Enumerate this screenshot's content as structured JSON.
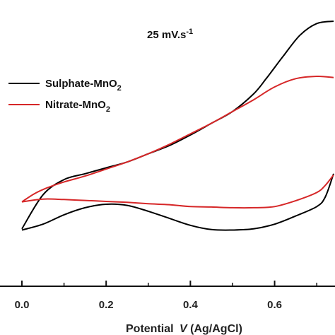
{
  "chart_data": {
    "type": "line",
    "annotation": {
      "main": "25 mV.s",
      "sup": "-1"
    },
    "xlabel": {
      "prefix": "Potential ",
      "var": "V",
      "suffix": " (Ag/AgCl)"
    },
    "ylabel": "",
    "xlim": [
      -0.05,
      0.74
    ],
    "ylim": [
      0,
      1
    ],
    "x_ticks": [
      0.0,
      0.2,
      0.4,
      0.6
    ],
    "x_tick_labels": [
      "0.0",
      "0.2",
      "0.4",
      "0.6"
    ],
    "legend_position": "upper-left",
    "series": [
      {
        "name": "Sulphate-MnO",
        "name_sub": "2",
        "color": "#000000",
        "upper_sweep": {
          "x": [
            0.0,
            0.05,
            0.1,
            0.15,
            0.2,
            0.25,
            0.3,
            0.35,
            0.4,
            0.45,
            0.5,
            0.55,
            0.58,
            0.62,
            0.66,
            0.7,
            0.74
          ],
          "y": [
            0.115,
            0.26,
            0.325,
            0.35,
            0.375,
            0.4,
            0.435,
            0.47,
            0.515,
            0.565,
            0.615,
            0.69,
            0.755,
            0.85,
            0.94,
            0.99,
            1.0
          ]
        },
        "lower_sweep": {
          "x": [
            0.74,
            0.72,
            0.7,
            0.65,
            0.6,
            0.55,
            0.5,
            0.45,
            0.4,
            0.35,
            0.3,
            0.25,
            0.2,
            0.15,
            0.1,
            0.05,
            0.0
          ],
          "y": [
            0.35,
            0.25,
            0.21,
            0.17,
            0.135,
            0.115,
            0.11,
            0.112,
            0.13,
            0.16,
            0.19,
            0.215,
            0.22,
            0.205,
            0.175,
            0.135,
            0.11
          ]
        }
      },
      {
        "name": "Nitrate-MnO",
        "name_sub": "2",
        "color": "#d62728",
        "upper_sweep": {
          "x": [
            0.0,
            0.03,
            0.06,
            0.1,
            0.15,
            0.2,
            0.25,
            0.3,
            0.35,
            0.4,
            0.45,
            0.5,
            0.55,
            0.6,
            0.65,
            0.7,
            0.74
          ],
          "y": [
            0.23,
            0.265,
            0.29,
            0.315,
            0.34,
            0.37,
            0.4,
            0.435,
            0.475,
            0.52,
            0.565,
            0.615,
            0.665,
            0.72,
            0.755,
            0.765,
            0.76
          ]
        },
        "lower_sweep": {
          "x": [
            0.74,
            0.72,
            0.7,
            0.65,
            0.6,
            0.55,
            0.5,
            0.45,
            0.4,
            0.35,
            0.3,
            0.25,
            0.2,
            0.15,
            0.1,
            0.05,
            0.0
          ],
          "y": [
            0.345,
            0.3,
            0.27,
            0.235,
            0.21,
            0.205,
            0.205,
            0.208,
            0.21,
            0.218,
            0.222,
            0.228,
            0.232,
            0.236,
            0.24,
            0.242,
            0.23
          ]
        }
      }
    ]
  }
}
